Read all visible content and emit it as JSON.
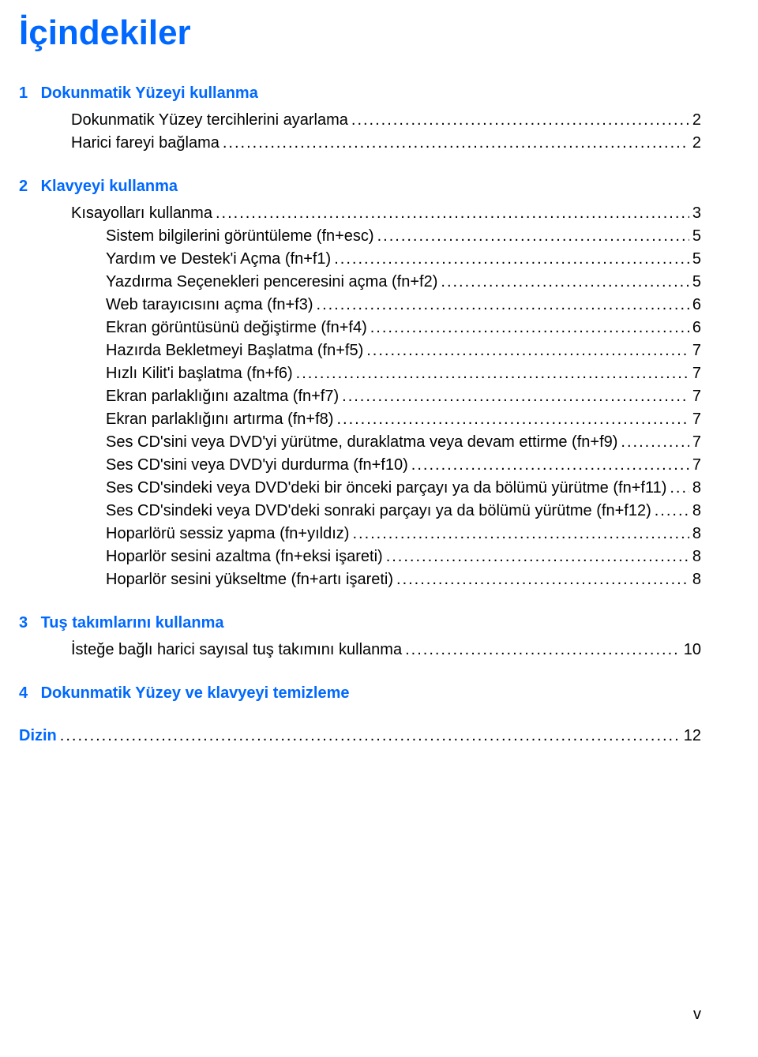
{
  "title": "İçindekiler",
  "colors": {
    "link_blue": "#0068ff",
    "text": "#000000",
    "background": "#ffffff"
  },
  "typography": {
    "title_fontsize": 44,
    "body_fontsize": 20,
    "font_family": "Arial"
  },
  "sections": [
    {
      "num": "1",
      "title": "Dokunmatik Yüzeyi kullanma",
      "entries": [
        {
          "label": "Dokunmatik Yüzey tercihlerini ayarlama",
          "page": "2"
        },
        {
          "label": "Harici fareyi bağlama",
          "page": "2"
        }
      ]
    },
    {
      "num": "2",
      "title": "Klavyeyi kullanma",
      "entries": [
        {
          "label": "Kısayolları kullanma",
          "page": "3"
        },
        {
          "label": "Sistem bilgilerini görüntüleme (fn+esc)",
          "page": "5"
        },
        {
          "label": "Yardım ve Destek'i Açma (fn+f1)",
          "page": "5"
        },
        {
          "label": "Yazdırma Seçenekleri penceresini açma (fn+f2)",
          "page": "5"
        },
        {
          "label": "Web tarayıcısını açma (fn+f3)",
          "page": "6"
        },
        {
          "label": "Ekran görüntüsünü değiştirme (fn+f4)",
          "page": "6"
        },
        {
          "label": "Hazırda Bekletmeyi Başlatma (fn+f5)",
          "page": "7"
        },
        {
          "label": "Hızlı Kilit'i başlatma (fn+f6)",
          "page": "7"
        },
        {
          "label": "Ekran parlaklığını azaltma (fn+f7)",
          "page": "7"
        },
        {
          "label": "Ekran parlaklığını artırma (fn+f8)",
          "page": "7"
        },
        {
          "label": "Ses CD'sini veya DVD'yi yürütme, duraklatma veya devam ettirme (fn+f9)",
          "page": "7"
        },
        {
          "label": "Ses CD'sini veya DVD'yi durdurma (fn+f10)",
          "page": "7"
        },
        {
          "label": "Ses CD'sindeki veya DVD'deki bir önceki parçayı ya da bölümü yürütme (fn+f11)",
          "page": "8"
        },
        {
          "label": "Ses CD'sindeki veya DVD'deki sonraki parçayı ya da bölümü yürütme (fn+f12)",
          "page": "8"
        },
        {
          "label": "Hoparlörü sessiz yapma (fn+yıldız)",
          "page": "8"
        },
        {
          "label": "Hoparlör sesini azaltma (fn+eksi işareti)",
          "page": "8"
        },
        {
          "label": "Hoparlör sesini yükseltme (fn+artı işareti)",
          "page": "8"
        }
      ]
    },
    {
      "num": "3",
      "title": "Tuş takımlarını kullanma",
      "entries": [
        {
          "label": "İsteğe bağlı harici sayısal tuş takımını kullanma",
          "page": "10"
        }
      ]
    },
    {
      "num": "4",
      "title": "Dokunmatik Yüzey ve klavyeyi temizleme",
      "entries": []
    },
    {
      "num": "",
      "title": "Dizin",
      "entries": [
        {
          "label": "",
          "page": "12"
        }
      ],
      "inline": true
    }
  ],
  "page_number": "v"
}
